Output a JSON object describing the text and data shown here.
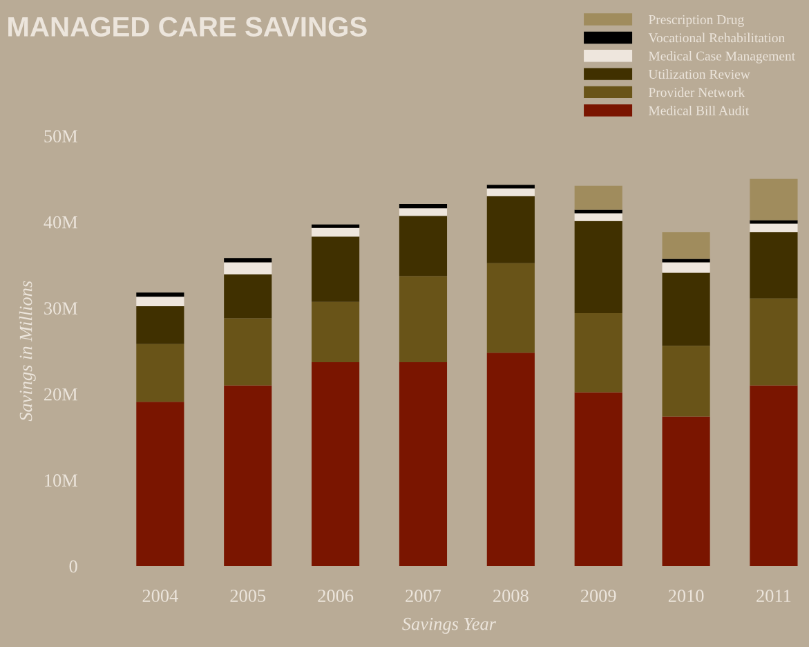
{
  "chart_data": {
    "type": "bar",
    "title": "MANAGED CARE SAVINGS",
    "xlabel": "Savings Year",
    "ylabel": "Savings in Millions",
    "categories": [
      "2004",
      "2005",
      "2006",
      "2007",
      "2008",
      "2009",
      "2010",
      "2011"
    ],
    "stacked": true,
    "legend": "top right",
    "grid": false,
    "ylim": [
      0,
      50
    ],
    "yticks": [
      0,
      {
        "value": 10,
        "label": "10M"
      },
      {
        "value": 20,
        "label": "20M"
      },
      {
        "value": 30,
        "label": "30M"
      },
      {
        "value": 40,
        "label": "40M"
      },
      {
        "value": 50,
        "label": "50M"
      }
    ],
    "series": [
      {
        "name": "Medical Bill Audit",
        "color": "#7a1500",
        "values": [
          19.1,
          21.0,
          23.7,
          23.7,
          24.8,
          20.2,
          17.4,
          21.0
        ]
      },
      {
        "name": "Provider Network",
        "color": "#695418",
        "values": [
          6.7,
          7.8,
          7.0,
          10.0,
          10.4,
          9.2,
          8.2,
          10.1
        ]
      },
      {
        "name": "Utilization Review",
        "color": "#403000",
        "values": [
          4.4,
          5.1,
          7.6,
          7.0,
          7.8,
          10.7,
          8.5,
          7.7
        ]
      },
      {
        "name": "Medical Case Management",
        "color": "#eee6dd",
        "values": [
          1.1,
          1.4,
          1.0,
          0.9,
          0.9,
          0.9,
          1.2,
          1.0
        ]
      },
      {
        "name": "Vocational Rehabilitation",
        "color": "#000000",
        "values": [
          0.5,
          0.5,
          0.4,
          0.5,
          0.4,
          0.4,
          0.4,
          0.4
        ]
      },
      {
        "name": "Prescription Drug",
        "color": "#a08c5d",
        "values": [
          null,
          null,
          null,
          null,
          null,
          2.8,
          3.1,
          4.8
        ]
      }
    ]
  }
}
